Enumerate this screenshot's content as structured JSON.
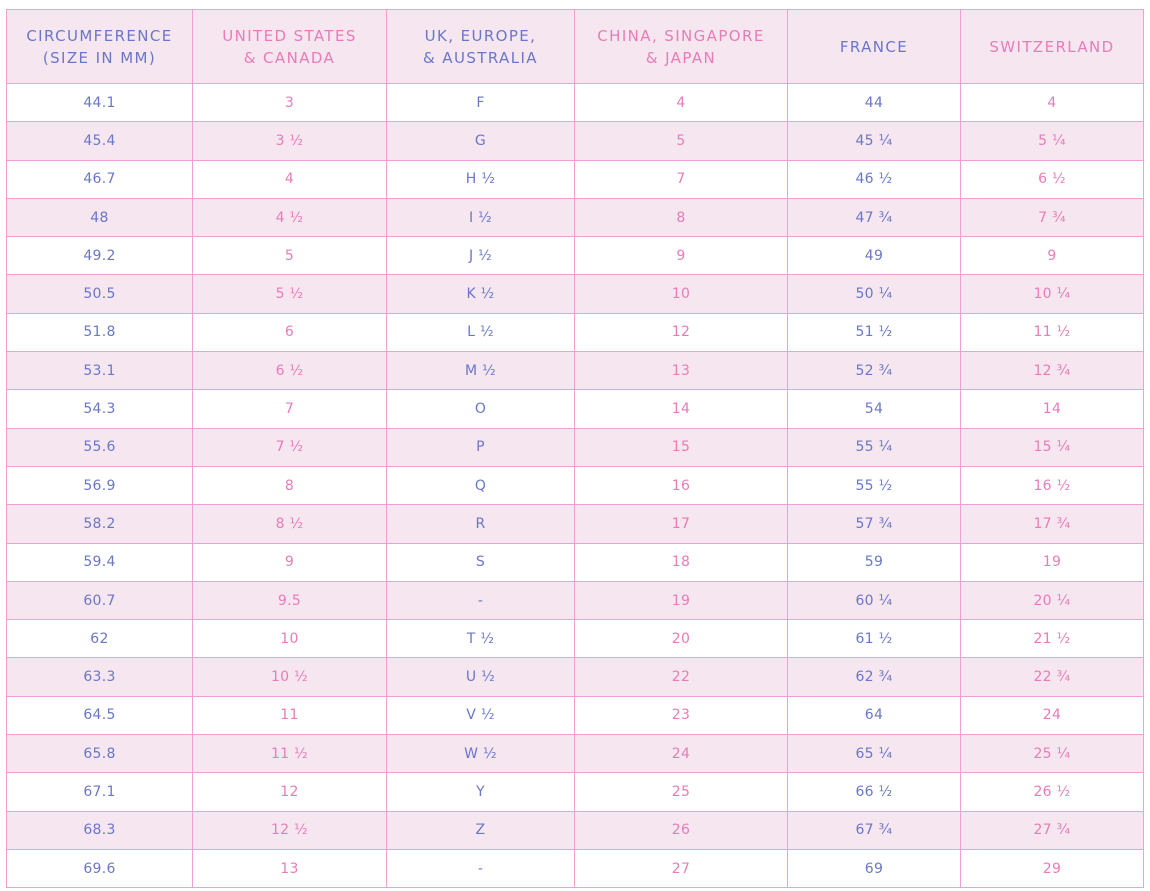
{
  "headers": [
    {
      "line1": "CIRCUMFERENCE",
      "line2": "(SIZE IN MM)"
    },
    {
      "line1": "UNITED STATES",
      "line2": "& CANADA"
    },
    {
      "line1": "UK, EUROPE,",
      "line2": "& AUSTRALIA"
    },
    {
      "line1": "CHINA, SINGAPORE",
      "line2": "& JAPAN"
    },
    {
      "line1": "FRANCE",
      "line2": ""
    },
    {
      "line1": "SWITZERLAND",
      "line2": ""
    }
  ],
  "rows": [
    [
      "44.1",
      "3",
      "F",
      "4",
      "44",
      "4"
    ],
    [
      "45.4",
      "3 ½",
      "G",
      "5",
      "45 ¼",
      "5 ¼"
    ],
    [
      "46.7",
      "4",
      "H ½",
      "7",
      "46 ½",
      "6 ½"
    ],
    [
      "48",
      "4 ½",
      "I ½",
      "8",
      "47 ¾",
      "7 ¾"
    ],
    [
      "49.2",
      "5",
      "J ½",
      "9",
      "49",
      "9"
    ],
    [
      "50.5",
      "5 ½",
      "K ½",
      "10",
      "50 ¼",
      "10 ¼"
    ],
    [
      "51.8",
      "6",
      "L ½",
      "12",
      "51 ½",
      "11 ½"
    ],
    [
      "53.1",
      "6 ½",
      "M ½",
      "13",
      "52 ¾",
      "12 ¾"
    ],
    [
      "54.3",
      "7",
      "O",
      "14",
      "54",
      "14"
    ],
    [
      "55.6",
      "7 ½",
      "P",
      "15",
      "55 ¼",
      "15 ¼"
    ],
    [
      "56.9",
      "8",
      "Q",
      "16",
      "55 ½",
      "16 ½"
    ],
    [
      "58.2",
      "8 ½",
      "R",
      "17",
      "57 ¾",
      "17 ¾"
    ],
    [
      "59.4",
      "9",
      "S",
      "18",
      "59",
      "19"
    ],
    [
      "60.7",
      "9.5",
      "-",
      "19",
      "60 ¼",
      "20 ¼"
    ],
    [
      "62",
      "10",
      "T ½",
      "20",
      "61 ½",
      "21 ½"
    ],
    [
      "63.3",
      "10 ½",
      "U ½",
      "22",
      "62 ¾",
      "22 ¾"
    ],
    [
      "64.5",
      "11",
      "V ½",
      "23",
      "64",
      "24"
    ],
    [
      "65.8",
      "11 ½",
      "W ½",
      "24",
      "65 ¼",
      "25 ¼"
    ],
    [
      "67.1",
      "12",
      "Y",
      "25",
      "66 ½",
      "26 ½"
    ],
    [
      "68.3",
      "12 ½",
      "Z",
      "26",
      "67 ¾",
      "27 ¾"
    ],
    [
      "69.6",
      "13",
      "-",
      "27",
      "69",
      "29"
    ]
  ],
  "colors": {
    "blue_text": "#6a77c9",
    "pink_text": "#e87cb9",
    "border": "#ee9fd6",
    "shaded_row": "#f5e6ef"
  }
}
